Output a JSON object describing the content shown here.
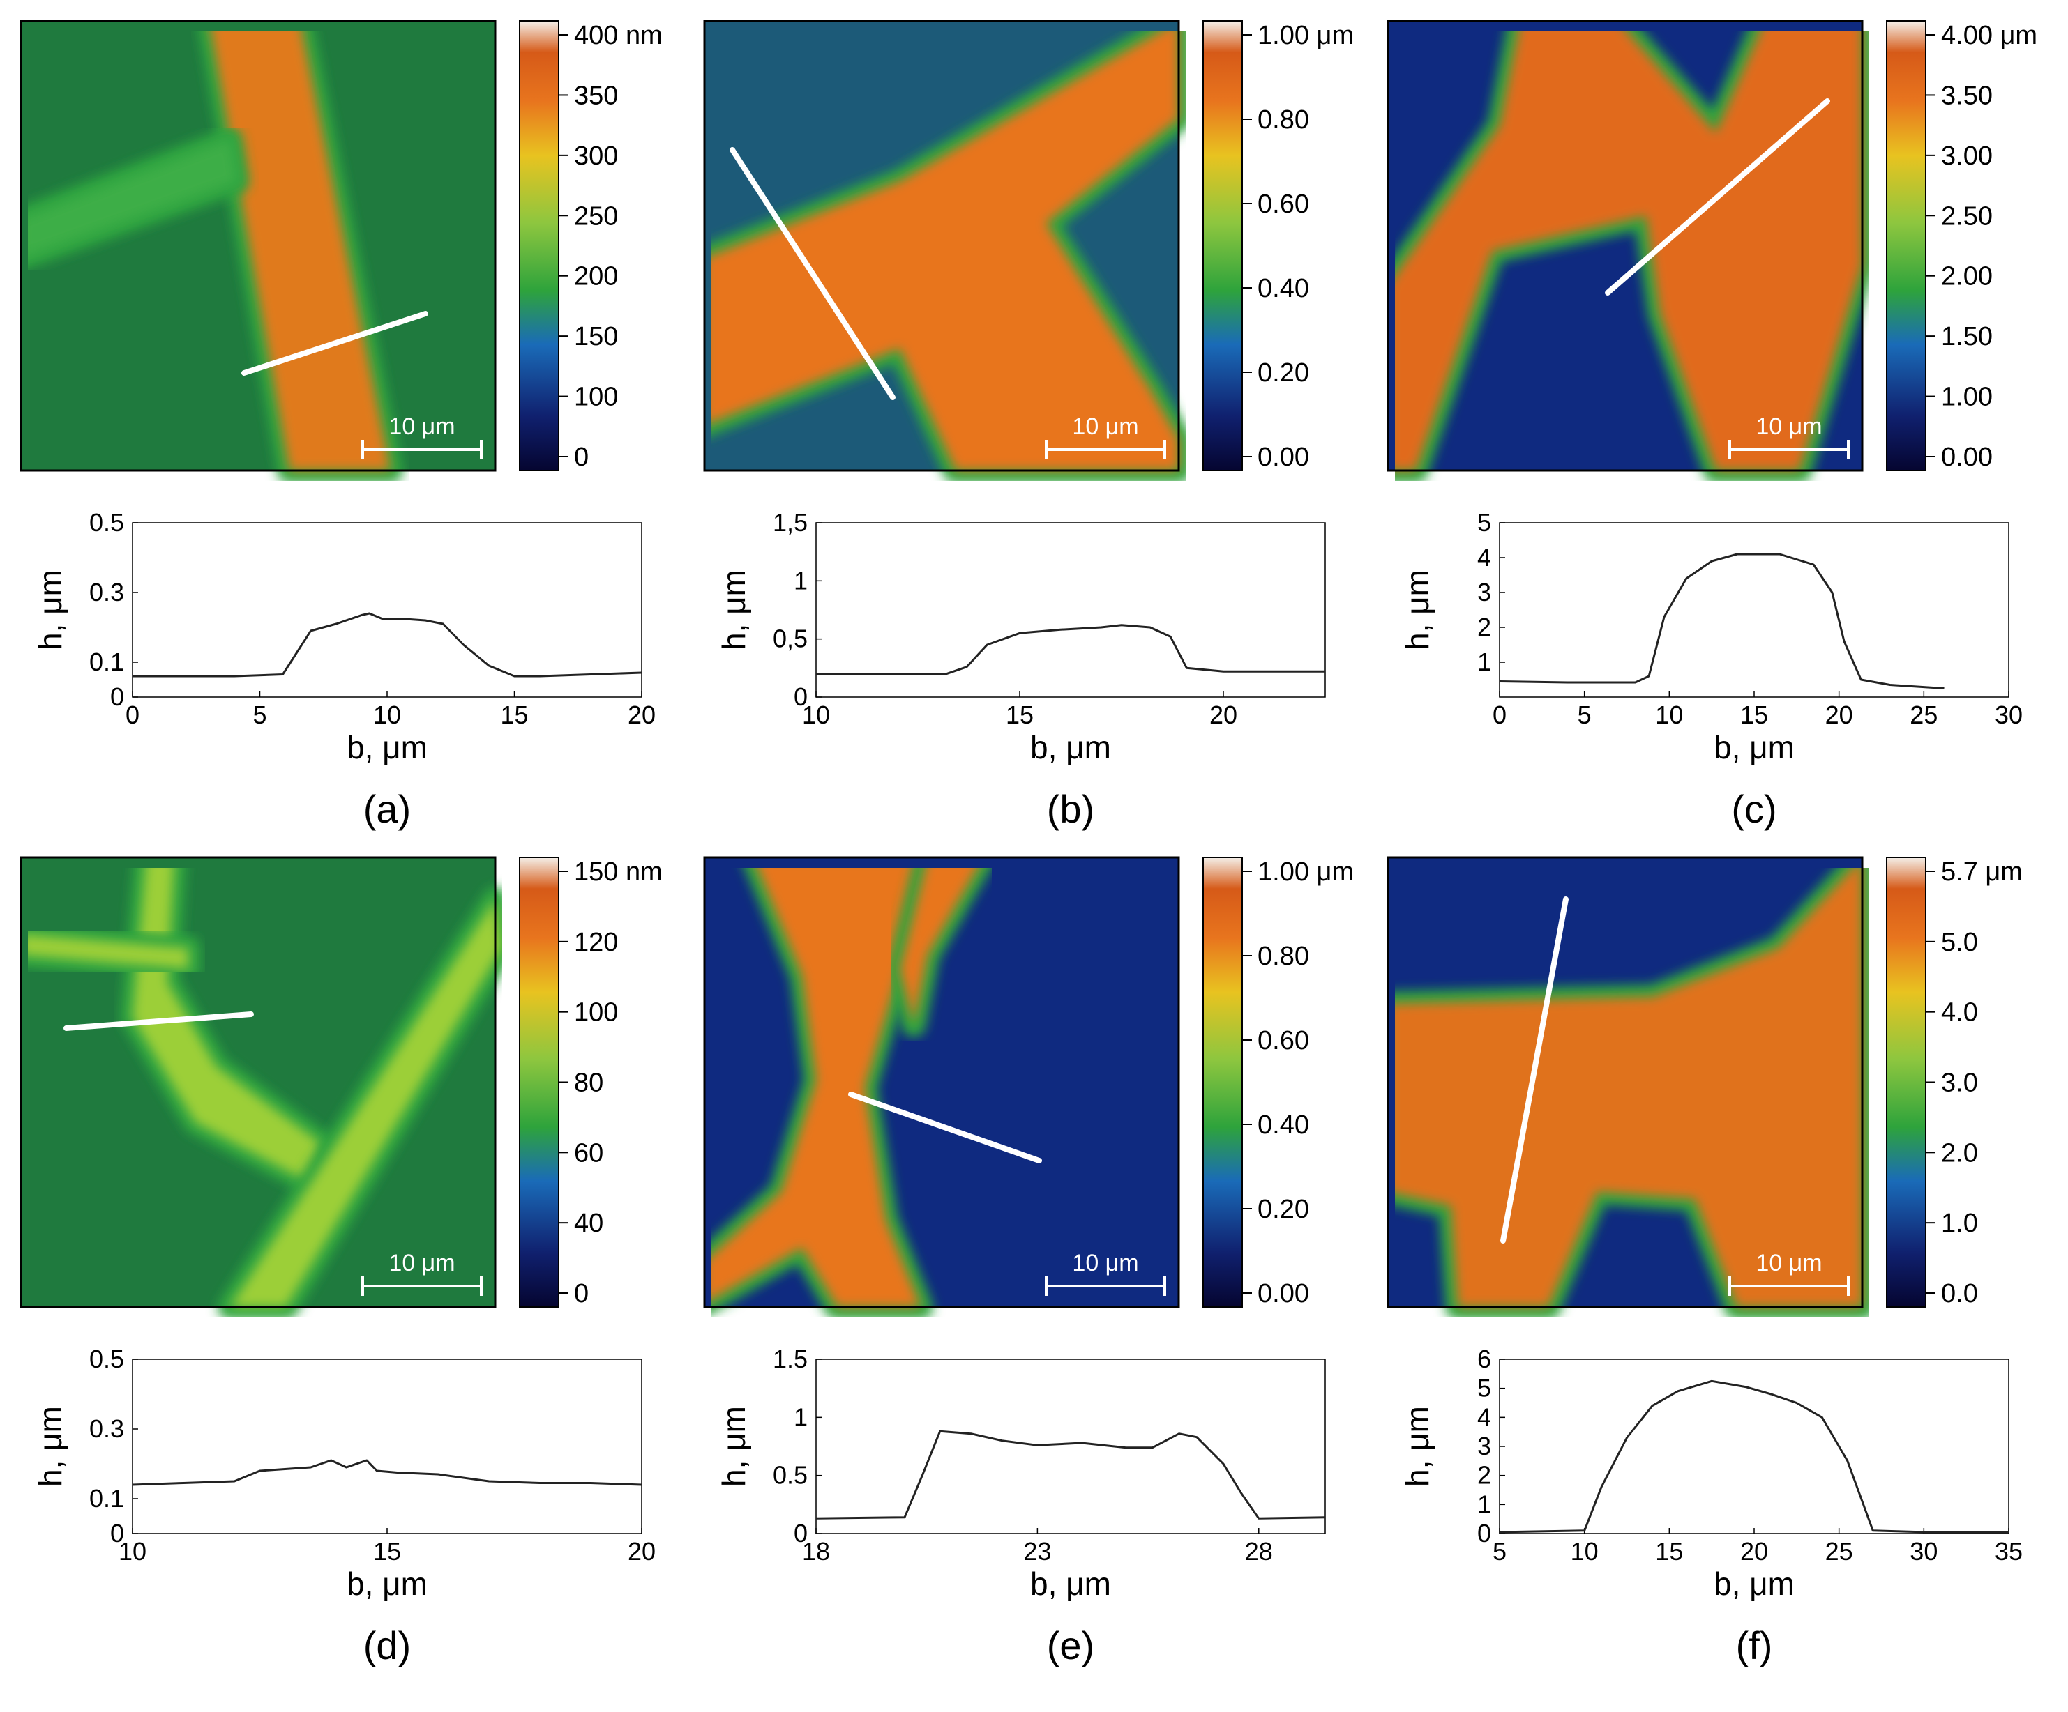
{
  "scale_bar_label": "10 μm",
  "panels": [
    {
      "label": "(a)",
      "colorbar_ticks": [
        "400 nm",
        "350",
        "300",
        "250",
        "200",
        "150",
        "100",
        "0"
      ],
      "image": {
        "type": "stripe",
        "ridge_color": "#e07a1f"
      }
    },
    {
      "label": "(b)",
      "colorbar_ticks": [
        "1.00 μm",
        "0.80",
        "0.60",
        "0.40",
        "0.20",
        "0.00"
      ],
      "image": {
        "type": "cross",
        "ridge_color": "#e8741e"
      }
    },
    {
      "label": "(c)",
      "colorbar_ticks": [
        "4.00 μm",
        "3.50",
        "3.00",
        "2.50",
        "2.00",
        "1.50",
        "1.00",
        "0.00"
      ],
      "image": {
        "type": "x-shape",
        "ridge_color": "#e16b1b"
      }
    },
    {
      "label": "(d)",
      "colorbar_ticks": [
        "150 nm",
        "120",
        "100",
        "80",
        "60",
        "40",
        "0"
      ],
      "image": {
        "type": "curved",
        "ridge_color": "#9ccf38"
      }
    },
    {
      "label": "(e)",
      "colorbar_ticks": [
        "1.00 μm",
        "0.80",
        "0.60",
        "0.40",
        "0.20",
        "0.00"
      ],
      "image": {
        "type": "y-shape",
        "ridge_color": "#e8761f"
      }
    },
    {
      "label": "(f)",
      "colorbar_ticks": [
        "5.7 μm",
        "5.0",
        "4.0",
        "3.0",
        "2.0",
        "1.0",
        "0.0"
      ],
      "image": {
        "type": "wide",
        "ridge_color": "#e0721d"
      }
    }
  ],
  "chart_data": [
    {
      "type": "line",
      "xlabel": "b, μm",
      "ylabel": "h, μm",
      "xlim": [
        0,
        20
      ],
      "ylim": [
        0,
        0.5
      ],
      "xticks": [
        0,
        5,
        10,
        15,
        20
      ],
      "xtick_labels": [
        "0",
        "5",
        "10",
        "15",
        "20"
      ],
      "yticks": [
        0,
        0.1,
        0.3,
        0.5
      ],
      "ytick_labels": [
        "0",
        "0.1",
        "0.3",
        "0.5"
      ],
      "x": [
        0,
        2,
        4,
        5.9,
        6.3,
        7,
        8,
        9,
        9.3,
        9.8,
        10.5,
        11.5,
        12.2,
        13,
        14,
        15,
        16,
        18,
        20
      ],
      "y": [
        0.06,
        0.06,
        0.06,
        0.065,
        0.11,
        0.19,
        0.21,
        0.235,
        0.24,
        0.225,
        0.225,
        0.22,
        0.21,
        0.15,
        0.09,
        0.06,
        0.06,
        0.065,
        0.07
      ]
    },
    {
      "type": "line",
      "xlabel": "b, μm",
      "ylabel": "h, μm",
      "xlim": [
        10,
        22.5
      ],
      "ylim": [
        0,
        1.5
      ],
      "xticks": [
        10,
        15,
        20
      ],
      "xtick_labels": [
        "10",
        "15",
        "20"
      ],
      "yticks": [
        0,
        0.5,
        1,
        1.5
      ],
      "ytick_labels": [
        "0",
        "0,5",
        "1",
        "1,5"
      ],
      "x": [
        10,
        12,
        13.2,
        13.7,
        14.2,
        15,
        16,
        17,
        17.5,
        18.2,
        18.7,
        19.1,
        20,
        22.5
      ],
      "y": [
        0.2,
        0.2,
        0.2,
        0.26,
        0.45,
        0.55,
        0.58,
        0.6,
        0.62,
        0.6,
        0.52,
        0.25,
        0.22,
        0.22
      ]
    },
    {
      "type": "line",
      "xlabel": "b, μm",
      "ylabel": "h, μm",
      "xlim": [
        0,
        30
      ],
      "ylim": [
        0,
        5
      ],
      "xticks": [
        0,
        5,
        10,
        15,
        20,
        25,
        30
      ],
      "xtick_labels": [
        "0",
        "5",
        "10",
        "15",
        "20",
        "25",
        "30"
      ],
      "yticks": [
        1,
        2,
        3,
        4,
        5
      ],
      "ytick_labels": [
        "1",
        "2",
        "3",
        "4",
        "5"
      ],
      "x": [
        0,
        4,
        8,
        8.8,
        9.7,
        11,
        12.5,
        14,
        16.5,
        18.5,
        19.6,
        20.3,
        21.3,
        23,
        26.2
      ],
      "y": [
        0.45,
        0.42,
        0.42,
        0.6,
        2.3,
        3.4,
        3.9,
        4.1,
        4.1,
        3.8,
        3.0,
        1.6,
        0.5,
        0.35,
        0.25
      ]
    },
    {
      "type": "line",
      "xlabel": "b, μm",
      "ylabel": "h, μm",
      "xlim": [
        10,
        20
      ],
      "ylim": [
        0,
        0.5
      ],
      "xticks": [
        10,
        15,
        20
      ],
      "xtick_labels": [
        "10",
        "15",
        "20"
      ],
      "yticks": [
        0,
        0.1,
        0.3,
        0.5
      ],
      "ytick_labels": [
        "0",
        "0.1",
        "0.3",
        "0.5"
      ],
      "x": [
        10,
        11,
        12,
        12.5,
        13.5,
        13.9,
        14.2,
        14.6,
        14.8,
        15.2,
        16,
        17,
        18,
        19,
        20
      ],
      "y": [
        0.14,
        0.145,
        0.15,
        0.18,
        0.19,
        0.21,
        0.19,
        0.21,
        0.18,
        0.175,
        0.17,
        0.15,
        0.145,
        0.145,
        0.14
      ]
    },
    {
      "type": "line",
      "xlabel": "b, μm",
      "ylabel": "h, μm",
      "xlim": [
        18,
        29.5
      ],
      "ylim": [
        0,
        1.5
      ],
      "xticks": [
        18,
        23,
        28
      ],
      "xtick_labels": [
        "18",
        "23",
        "28"
      ],
      "yticks": [
        0,
        0.5,
        1,
        1.5
      ],
      "ytick_labels": [
        "0",
        "0.5",
        "1",
        "1.5"
      ],
      "x": [
        18,
        20,
        20.4,
        20.8,
        21.5,
        22.2,
        23,
        24,
        25,
        25.6,
        26.2,
        26.6,
        27.2,
        27.6,
        28,
        29.5
      ],
      "y": [
        0.13,
        0.14,
        0.5,
        0.88,
        0.86,
        0.8,
        0.76,
        0.78,
        0.74,
        0.74,
        0.86,
        0.83,
        0.6,
        0.35,
        0.13,
        0.14
      ]
    },
    {
      "type": "line",
      "xlabel": "b, μm",
      "ylabel": "h, μm",
      "xlim": [
        5,
        35
      ],
      "ylim": [
        0,
        6
      ],
      "xticks": [
        5,
        10,
        15,
        20,
        25,
        30,
        35
      ],
      "xtick_labels": [
        "5",
        "10",
        "15",
        "20",
        "25",
        "30",
        "35"
      ],
      "yticks": [
        0,
        1,
        2,
        3,
        4,
        5,
        6
      ],
      "ytick_labels": [
        "0",
        "1",
        "2",
        "3",
        "4",
        "5",
        "6"
      ],
      "x": [
        5,
        10,
        11,
        12.5,
        14,
        15.5,
        17.5,
        19.5,
        21,
        22.5,
        24,
        25.5,
        27,
        30,
        35
      ],
      "y": [
        0.05,
        0.1,
        1.6,
        3.3,
        4.4,
        4.9,
        5.25,
        5.05,
        4.8,
        4.5,
        4.0,
        2.5,
        0.1,
        0.05,
        0.05
      ]
    }
  ]
}
